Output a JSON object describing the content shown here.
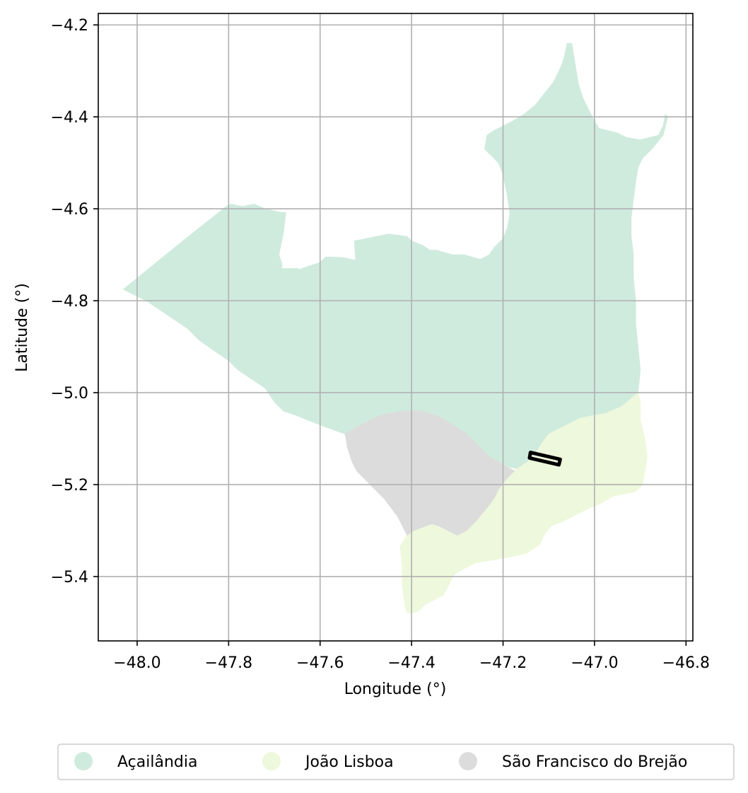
{
  "axes": {
    "xlabel": "Longitude (°)",
    "ylabel": "Latitude (°)",
    "xlim": [
      -48.085,
      -46.785
    ],
    "ylim": [
      -5.54,
      -4.175
    ],
    "grid": true,
    "xticks": [
      {
        "value": -48.0,
        "label": "−48.0"
      },
      {
        "value": -47.8,
        "label": "−47.8"
      },
      {
        "value": -47.6,
        "label": "−47.6"
      },
      {
        "value": -47.4,
        "label": "−47.4"
      },
      {
        "value": -47.2,
        "label": "−47.2"
      },
      {
        "value": -47.0,
        "label": "−47.0"
      },
      {
        "value": -46.8,
        "label": "−46.8"
      }
    ],
    "yticks": [
      {
        "value": -4.2,
        "label": "−4.2"
      },
      {
        "value": -4.4,
        "label": "−4.4"
      },
      {
        "value": -4.6,
        "label": "−4.6"
      },
      {
        "value": -4.8,
        "label": "−4.8"
      },
      {
        "value": -5.0,
        "label": "−5.0"
      },
      {
        "value": -5.2,
        "label": "−5.2"
      },
      {
        "value": -5.4,
        "label": "−5.4"
      }
    ]
  },
  "regions": [
    {
      "name": "Açailândia",
      "color": "#cfebdd",
      "coords": [
        [
          -48.03,
          -4.775
        ],
        [
          -47.9,
          -4.67
        ],
        [
          -47.805,
          -4.595
        ],
        [
          -47.795,
          -4.59
        ],
        [
          -47.77,
          -4.595
        ],
        [
          -47.745,
          -4.59
        ],
        [
          -47.72,
          -4.6
        ],
        [
          -47.69,
          -4.607
        ],
        [
          -47.675,
          -4.608
        ],
        [
          -47.68,
          -4.65
        ],
        [
          -47.69,
          -4.7
        ],
        [
          -47.683,
          -4.722
        ],
        [
          -47.685,
          -4.73
        ],
        [
          -47.65,
          -4.73
        ],
        [
          -47.645,
          -4.732
        ],
        [
          -47.625,
          -4.725
        ],
        [
          -47.6,
          -4.717
        ],
        [
          -47.588,
          -4.705
        ],
        [
          -47.575,
          -4.705
        ],
        [
          -47.55,
          -4.706
        ],
        [
          -47.522,
          -4.712
        ],
        [
          -47.525,
          -4.67
        ],
        [
          -47.5,
          -4.665
        ],
        [
          -47.45,
          -4.655
        ],
        [
          -47.41,
          -4.66
        ],
        [
          -47.4,
          -4.67
        ],
        [
          -47.375,
          -4.68
        ],
        [
          -47.36,
          -4.69
        ],
        [
          -47.345,
          -4.69
        ],
        [
          -47.33,
          -4.695
        ],
        [
          -47.31,
          -4.7
        ],
        [
          -47.285,
          -4.7
        ],
        [
          -47.25,
          -4.71
        ],
        [
          -47.23,
          -4.7
        ],
        [
          -47.22,
          -4.685
        ],
        [
          -47.2,
          -4.665
        ],
        [
          -47.19,
          -4.64
        ],
        [
          -47.185,
          -4.61
        ],
        [
          -47.19,
          -4.575
        ],
        [
          -47.195,
          -4.55
        ],
        [
          -47.2,
          -4.525
        ],
        [
          -47.21,
          -4.5
        ],
        [
          -47.225,
          -4.485
        ],
        [
          -47.24,
          -4.47
        ],
        [
          -47.235,
          -4.44
        ],
        [
          -47.22,
          -4.43
        ],
        [
          -47.2,
          -4.42
        ],
        [
          -47.18,
          -4.41
        ],
        [
          -47.155,
          -4.395
        ],
        [
          -47.13,
          -4.375
        ],
        [
          -47.11,
          -4.35
        ],
        [
          -47.09,
          -4.325
        ],
        [
          -47.08,
          -4.305
        ],
        [
          -47.07,
          -4.283
        ],
        [
          -47.065,
          -4.265
        ],
        [
          -47.06,
          -4.24
        ],
        [
          -47.05,
          -4.24
        ],
        [
          -47.045,
          -4.27
        ],
        [
          -47.04,
          -4.3
        ],
        [
          -47.035,
          -4.33
        ],
        [
          -47.025,
          -4.36
        ],
        [
          -47.01,
          -4.39
        ],
        [
          -47.0,
          -4.41
        ],
        [
          -46.99,
          -4.425
        ],
        [
          -46.97,
          -4.43
        ],
        [
          -46.95,
          -4.435
        ],
        [
          -46.93,
          -4.445
        ],
        [
          -46.9,
          -4.45
        ],
        [
          -46.88,
          -4.445
        ],
        [
          -46.86,
          -4.44
        ],
        [
          -46.85,
          -4.42
        ],
        [
          -46.845,
          -4.395
        ],
        [
          -46.84,
          -4.4
        ],
        [
          -46.85,
          -4.44
        ],
        [
          -46.875,
          -4.47
        ],
        [
          -46.895,
          -4.49
        ],
        [
          -46.905,
          -4.51
        ],
        [
          -46.91,
          -4.54
        ],
        [
          -46.915,
          -4.58
        ],
        [
          -46.92,
          -4.62
        ],
        [
          -46.92,
          -4.66
        ],
        [
          -46.915,
          -4.7
        ],
        [
          -46.915,
          -4.75
        ],
        [
          -46.91,
          -4.8
        ],
        [
          -46.91,
          -4.85
        ],
        [
          -46.905,
          -4.9
        ],
        [
          -46.9,
          -4.95
        ],
        [
          -46.905,
          -5.0
        ],
        [
          -46.94,
          -5.03
        ],
        [
          -46.975,
          -5.045
        ],
        [
          -47.03,
          -5.055
        ],
        [
          -47.06,
          -5.07
        ],
        [
          -47.08,
          -5.08
        ],
        [
          -47.1,
          -5.09
        ],
        [
          -47.115,
          -5.11
        ],
        [
          -47.13,
          -5.135
        ],
        [
          -47.145,
          -5.15
        ],
        [
          -47.17,
          -5.165
        ],
        [
          -47.195,
          -5.16
        ],
        [
          -47.21,
          -5.15
        ],
        [
          -47.23,
          -5.14
        ],
        [
          -47.25,
          -5.12
        ],
        [
          -47.28,
          -5.09
        ],
        [
          -47.31,
          -5.07
        ],
        [
          -47.345,
          -5.05
        ],
        [
          -47.38,
          -5.04
        ],
        [
          -47.42,
          -5.04
        ],
        [
          -47.47,
          -5.05
        ],
        [
          -47.51,
          -5.07
        ],
        [
          -47.545,
          -5.09
        ],
        [
          -47.6,
          -5.07
        ],
        [
          -47.65,
          -5.05
        ],
        [
          -47.68,
          -5.04
        ],
        [
          -47.7,
          -5.02
        ],
        [
          -47.72,
          -4.99
        ],
        [
          -47.75,
          -4.97
        ],
        [
          -47.78,
          -4.95
        ],
        [
          -47.8,
          -4.93
        ],
        [
          -47.83,
          -4.91
        ],
        [
          -47.865,
          -4.885
        ],
        [
          -47.89,
          -4.86
        ],
        [
          -47.92,
          -4.84
        ],
        [
          -47.95,
          -4.82
        ],
        [
          -47.98,
          -4.8
        ],
        [
          -48.01,
          -4.785
        ],
        [
          -48.03,
          -4.775
        ]
      ]
    },
    {
      "name": "João Lisboa",
      "color": "#eef8dc",
      "coords": [
        [
          -47.145,
          -5.15
        ],
        [
          -47.13,
          -5.135
        ],
        [
          -47.115,
          -5.11
        ],
        [
          -47.1,
          -5.09
        ],
        [
          -47.08,
          -5.08
        ],
        [
          -47.06,
          -5.07
        ],
        [
          -47.03,
          -5.055
        ],
        [
          -46.975,
          -5.045
        ],
        [
          -46.94,
          -5.03
        ],
        [
          -46.905,
          -5.0
        ],
        [
          -46.9,
          -5.02
        ],
        [
          -46.9,
          -5.06
        ],
        [
          -46.89,
          -5.1
        ],
        [
          -46.885,
          -5.14
        ],
        [
          -46.89,
          -5.17
        ],
        [
          -46.895,
          -5.2
        ],
        [
          -46.91,
          -5.215
        ],
        [
          -46.935,
          -5.22
        ],
        [
          -46.96,
          -5.225
        ],
        [
          -46.985,
          -5.24
        ],
        [
          -47.01,
          -5.25
        ],
        [
          -47.03,
          -5.26
        ],
        [
          -47.05,
          -5.27
        ],
        [
          -47.07,
          -5.28
        ],
        [
          -47.095,
          -5.29
        ],
        [
          -47.11,
          -5.31
        ],
        [
          -47.12,
          -5.33
        ],
        [
          -47.15,
          -5.35
        ],
        [
          -47.175,
          -5.355
        ],
        [
          -47.2,
          -5.36
        ],
        [
          -47.23,
          -5.365
        ],
        [
          -47.26,
          -5.37
        ],
        [
          -47.28,
          -5.38
        ],
        [
          -47.3,
          -5.39
        ],
        [
          -47.31,
          -5.4
        ],
        [
          -47.32,
          -5.42
        ],
        [
          -47.33,
          -5.44
        ],
        [
          -47.35,
          -5.45
        ],
        [
          -47.37,
          -5.46
        ],
        [
          -47.385,
          -5.475
        ],
        [
          -47.4,
          -5.48
        ],
        [
          -47.41,
          -5.478
        ],
        [
          -47.415,
          -5.46
        ],
        [
          -47.42,
          -5.42
        ],
        [
          -47.42,
          -5.38
        ],
        [
          -47.425,
          -5.335
        ],
        [
          -47.41,
          -5.31
        ],
        [
          -47.395,
          -5.3
        ],
        [
          -47.37,
          -5.29
        ],
        [
          -47.355,
          -5.285
        ],
        [
          -47.34,
          -5.29
        ],
        [
          -47.32,
          -5.3
        ],
        [
          -47.3,
          -5.31
        ],
        [
          -47.28,
          -5.3
        ],
        [
          -47.26,
          -5.28
        ],
        [
          -47.235,
          -5.25
        ],
        [
          -47.22,
          -5.23
        ],
        [
          -47.21,
          -5.21
        ],
        [
          -47.195,
          -5.19
        ],
        [
          -47.175,
          -5.17
        ],
        [
          -47.16,
          -5.16
        ],
        [
          -47.145,
          -5.15
        ]
      ]
    },
    {
      "name": "São Francisco do Brejão",
      "color": "#dcdcdc",
      "coords": [
        [
          -47.545,
          -5.09
        ],
        [
          -47.51,
          -5.07
        ],
        [
          -47.47,
          -5.05
        ],
        [
          -47.42,
          -5.04
        ],
        [
          -47.38,
          -5.04
        ],
        [
          -47.345,
          -5.05
        ],
        [
          -47.31,
          -5.07
        ],
        [
          -47.28,
          -5.09
        ],
        [
          -47.25,
          -5.12
        ],
        [
          -47.23,
          -5.14
        ],
        [
          -47.21,
          -5.15
        ],
        [
          -47.195,
          -5.16
        ],
        [
          -47.175,
          -5.17
        ],
        [
          -47.195,
          -5.19
        ],
        [
          -47.21,
          -5.21
        ],
        [
          -47.22,
          -5.23
        ],
        [
          -47.235,
          -5.25
        ],
        [
          -47.26,
          -5.28
        ],
        [
          -47.28,
          -5.3
        ],
        [
          -47.3,
          -5.31
        ],
        [
          -47.32,
          -5.3
        ],
        [
          -47.34,
          -5.29
        ],
        [
          -47.355,
          -5.285
        ],
        [
          -47.37,
          -5.29
        ],
        [
          -47.395,
          -5.3
        ],
        [
          -47.41,
          -5.31
        ],
        [
          -47.42,
          -5.29
        ],
        [
          -47.43,
          -5.27
        ],
        [
          -47.445,
          -5.25
        ],
        [
          -47.46,
          -5.23
        ],
        [
          -47.48,
          -5.21
        ],
        [
          -47.5,
          -5.19
        ],
        [
          -47.52,
          -5.17
        ],
        [
          -47.53,
          -5.15
        ],
        [
          -47.54,
          -5.12
        ],
        [
          -47.545,
          -5.09
        ]
      ]
    }
  ],
  "highlight_box": {
    "coords": [
      [
        -47.14,
        -5.13
      ],
      [
        -47.075,
        -5.145
      ],
      [
        -47.078,
        -5.157
      ],
      [
        -47.142,
        -5.142
      ],
      [
        -47.14,
        -5.13
      ]
    ]
  },
  "legend": {
    "items": [
      {
        "label": "Açailândia",
        "color": "#cfebdd"
      },
      {
        "label": "João Lisboa",
        "color": "#eef8dc"
      },
      {
        "label": "São Francisco do Brejão",
        "color": "#dcdcdc"
      }
    ]
  }
}
